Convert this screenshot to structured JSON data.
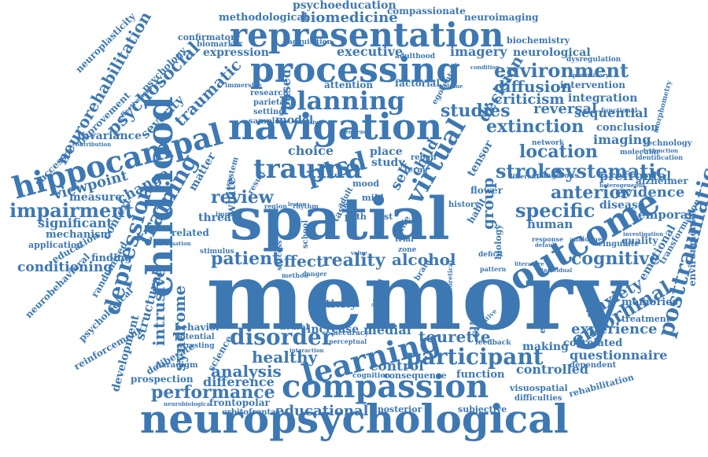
{
  "words": {
    "memory": "memory",
    "spatial": "spatial",
    "neuropsychological": "neuropsychological",
    "compassion": "compassion",
    "navigation": "navigation",
    "processing": "processing",
    "representation": "representation",
    "childhood": "childhood",
    "hippocampal": "hippocampal",
    "trauma": "trauma",
    "outcome": "outcome",
    "learning": "learning",
    "planning": "planning",
    "disorder": "disorder",
    "participant": "participant",
    "ptsd": "ptsd",
    "virtual": "virtual",
    "review": "review",
    "environment": "environment",
    "impairment": "impairment",
    "depression": "depression",
    "training": "training",
    "posttraumatic": "posttraumatic",
    "stroke": "stroke",
    "systematic": "systematic",
    "specific": "specific",
    "patient": "patient",
    "performance": "performance",
    "anterior": "anterior",
    "location": "location",
    "extinction": "extinction",
    "studies": "studies",
    "diffusion": "diffusion",
    "decision": "decision",
    "cognitive": "cognitive",
    "entorhinal": "entorhinal",
    "educational": "educational",
    "analysis": "analysis",
    "healthy": "healthy",
    "syndrome": "syndrome",
    "intrusive": "intrusive",
    "psychosocial": "psychosocial",
    "neurorehabilitation": "neurorehabilitation",
    "traumatic": "traumatic",
    "alcohol": "alcohol",
    "reality": "reality",
    "effect": "effect",
    "tourette": "tourette",
    "experience": "experience",
    "questionnaire": "questionnaire",
    "control": "control",
    "controlled": "controlled",
    "evidence": "evidence",
    "anxiety": "anxiety",
    "group": "group",
    "clinical": "clinical",
    "biomedicine": "biomedicine",
    "methodological": "methodological",
    "psychoeducation": "psychoeducation",
    "compassionate": "compassionate",
    "neuroimaging": "neuroimaging",
    "executive": "executive",
    "imagery": "imagery",
    "expression": "expression",
    "neurological": "neurological",
    "confirmatory": "confirmatory",
    "biomarker": "biomarker",
    "neuroplasticity": "neuroplasticity",
    "psychology": "psychology",
    "improvement": "improvement",
    "viewpoint": "viewpoint",
    "invariance": "invariance",
    "change": "change",
    "measure": "measure",
    "significant": "significant",
    "mechanism": "mechanism",
    "application": "application",
    "education": "education",
    "context": "context",
    "conditioning": "conditioning",
    "finding": "finding",
    "neurobehavioral": "neurobehavioral",
    "randomised": "randomised",
    "psychological": "psychological",
    "reinforcement": "reinforcement",
    "development": "development",
    "structural": "structural",
    "deliberate": "deliberate",
    "paradigm": "paradigm",
    "prospection": "prospection",
    "difference": "difference",
    "frontopolar": "frontopolar",
    "orbitofrontal": "orbitofrontal",
    "neurobiological": "neurobiological",
    "posterior": "posterior",
    "subjective": "subjective",
    "visuospatial": "visuospatial",
    "difficulties": "difficulties",
    "rehabilitation": "rehabilitation",
    "correlated": "correlated",
    "making": "making",
    "dependent": "dependent",
    "function": "function",
    "consequence": "consequence",
    "cognition": "cognition",
    "memories": "memories",
    "treatment": "treatment",
    "emotional": "emotional",
    "environmental": "environmental",
    "transformation": "transformation",
    "temporal": "temporal",
    "disease": "disease",
    "alzheimer": "alzheimer",
    "prefrontal": "prefrontal",
    "imaging": "imaging",
    "conclusion": "conclusion",
    "technology": "technology",
    "sequential": "sequential",
    "criticism": "criticism",
    "reversal": "reversal",
    "integration": "integration",
    "intervention": "intervention",
    "biochemistry": "biochemistry",
    "dysregulation": "dysregulation",
    "morphometry": "morphometry",
    "human": "human",
    "quality": "quality",
    "cingulate": "cingulate",
    "biology": "biology",
    "embodying": "embodying",
    "activity": "activity",
    "increase": "increase",
    "medial": "medial",
    "neural": "neural",
    "behavior": "behavior",
    "potential": "potential",
    "arresting": "arresting",
    "science": "science",
    "white": "white",
    "matter": "matter",
    "threat": "threat",
    "related": "related",
    "choice": "choice",
    "place": "place",
    "study": "study",
    "mood": "mood",
    "child": "child",
    "self": "self",
    "tensor": "tensor",
    "term": "term",
    "model": "model",
    "based": "based",
    "attention": "attention",
    "factorial": "factorial",
    "research": "research",
    "parietal": "parietal",
    "setting": "setting",
    "sample": "sample",
    "immersive": "immersive",
    "successor": "successor",
    "severity": "severity",
    "contribution": "contribution",
    "effectiveness": "effectiveness",
    "acquisition": "acquisition",
    "adulthood": "adulthood",
    "egocentric": "egocentric",
    "network": "network",
    "molecular": "molecular",
    "functional": "functional",
    "identification": "identification",
    "dysfunction": "dysfunction",
    "preliminary": "preliminary",
    "heterogeneous": "heterogeneous",
    "dangerous": "dangerous",
    "different": "different",
    "response": "response",
    "analogue": "analogue",
    "investigation": "investigation",
    "individual": "individual",
    "literature": "literature",
    "pattern": "pattern",
    "deficit": "deficit",
    "negative": "negative",
    "theoretical": "theoretical",
    "ageing": "ageing",
    "feedback": "feedback",
    "accuracy": "accuracy",
    "perceptual": "perceptual",
    "interaction": "interaction",
    "default": "default",
    "flower": "flower",
    "history": "history",
    "habit": "habit",
    "trial": "trial",
    "life": "life",
    "zone": "zone",
    "value": "value",
    "path": "path",
    "test": "test",
    "task": "task",
    "adult": "adult",
    "mild": "mild",
    "repair": "repair",
    "system": "system",
    "result": "result",
    "success": "success",
    "school": "school",
    "stimulus": "stimulus",
    "lesion": "lesion",
    "region": "region",
    "rhythm": "rhythm",
    "method": "method",
    "danger": "danger",
    "impact": "impact",
    "brain": "brain",
    "information": "information",
    "condition": "condition",
    "volume": "volume",
    "sensitive": "sensitive",
    "frequency": "frequency"
  }
}
